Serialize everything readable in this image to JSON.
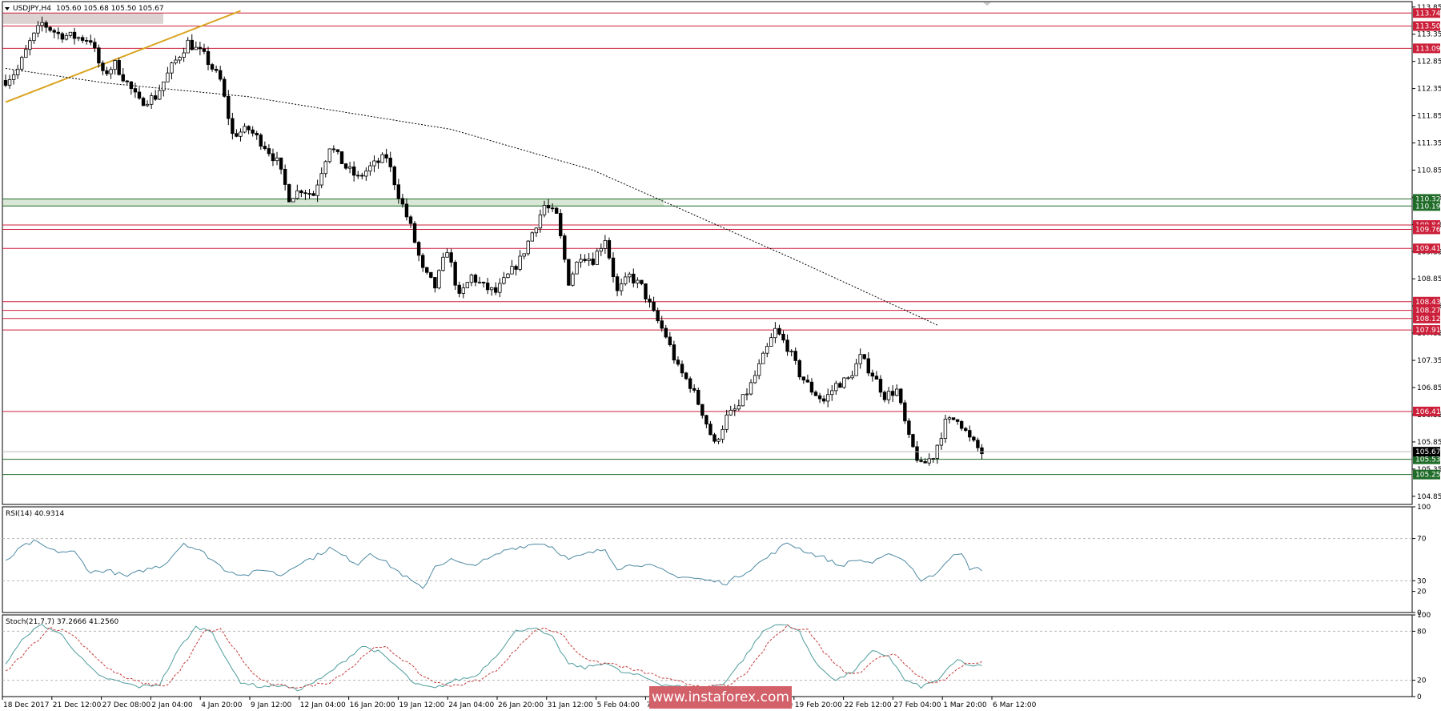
{
  "chart_data": {
    "type": "candlestick",
    "symbol": "USDJPY,H4",
    "header_title": "USDJPY,H4",
    "header_ohlc": "105.60 105.68 105.50 105.67",
    "price_axis": {
      "range": [
        104.7,
        113.95
      ],
      "ticks": [
        "113.85",
        "113.35",
        "112.85",
        "112.35",
        "111.85",
        "111.35",
        "110.85",
        "110.35",
        "109.85",
        "109.35",
        "108.85",
        "108.35",
        "107.85",
        "107.35",
        "106.85",
        "106.35",
        "105.85",
        "105.35",
        "104.85"
      ]
    },
    "time_labels": [
      "18 Dec 2017",
      "21 Dec 12:00",
      "27 Dec 08:00",
      "2 Jan 04:00",
      "4 Jan 20:00",
      "9 Jan 12:00",
      "12 Jan 04:00",
      "16 Jan 20:00",
      "19 Jan 12:00",
      "24 Jan 04:00",
      "26 Jan 20:00",
      "31 Jan 12:00",
      "5 Feb 04:00",
      "7 Feb 20:00",
      "12 Feb 12:00",
      "15 Feb 04:00",
      "19 Feb 20:00",
      "22 Feb 12:00",
      "27 Feb 04:00",
      "1 Mar 20:00",
      "6 Mar 12:00"
    ],
    "levels": [
      {
        "label": "113.74",
        "value": 113.74,
        "color": "#cc1f3a"
      },
      {
        "label": "113.50",
        "value": 113.5,
        "color": "#cc1f3a"
      },
      {
        "label": "113.09",
        "value": 113.09,
        "color": "#cc1f3a"
      },
      {
        "label": "110.32",
        "value": 110.32,
        "color": "#1f6b28"
      },
      {
        "label": "110.19",
        "value": 110.19,
        "color": "#1f6b28"
      },
      {
        "label": "109.84",
        "value": 109.84,
        "color": "#cc1f3a"
      },
      {
        "label": "109.76",
        "value": 109.76,
        "color": "#cc1f3a"
      },
      {
        "label": "109.41",
        "value": 109.41,
        "color": "#cc1f3a"
      },
      {
        "label": "108.43",
        "value": 108.43,
        "color": "#cc1f3a"
      },
      {
        "label": "108.27",
        "value": 108.27,
        "color": "#cc1f3a"
      },
      {
        "label": "108.12",
        "value": 108.12,
        "color": "#cc1f3a"
      },
      {
        "label": "107.91",
        "value": 107.91,
        "color": "#cc1f3a"
      },
      {
        "label": "106.41",
        "value": 106.41,
        "color": "#cc1f3a"
      },
      {
        "label": "105.53",
        "value": 105.53,
        "color": "#1f6b28"
      },
      {
        "label": "105.25",
        "value": 105.25,
        "color": "#1f6b28"
      }
    ],
    "current_price": {
      "label": "105.67",
      "value": 105.67
    },
    "zones": [
      {
        "from": 113.54,
        "to": 113.74,
        "color": "#dcd2d2"
      },
      {
        "from": 110.19,
        "to": 110.32,
        "color": "#d9e7d6"
      }
    ],
    "trendline": {
      "from": [
        0,
        112.1
      ],
      "to": [
        58,
        113.78
      ],
      "color": "#d9a421"
    },
    "ma_anchors": [
      [
        0,
        112.72
      ],
      [
        25,
        112.45
      ],
      [
        60,
        112.2
      ],
      [
        110,
        111.6
      ],
      [
        145,
        110.85
      ],
      [
        195,
        109.2
      ],
      [
        230,
        108.0
      ]
    ],
    "price_anchors": [
      [
        0,
        112.5
      ],
      [
        3,
        112.7
      ],
      [
        6,
        113.2
      ],
      [
        9,
        113.55
      ],
      [
        13,
        113.35
      ],
      [
        17,
        113.3
      ],
      [
        21,
        113.25
      ],
      [
        24,
        112.6
      ],
      [
        27,
        112.8
      ],
      [
        30,
        112.45
      ],
      [
        33,
        112.1
      ],
      [
        37,
        112.2
      ],
      [
        41,
        112.75
      ],
      [
        45,
        113.2
      ],
      [
        49,
        112.95
      ],
      [
        53,
        112.5
      ],
      [
        56,
        111.5
      ],
      [
        60,
        111.6
      ],
      [
        64,
        111.3
      ],
      [
        67,
        111.0
      ],
      [
        70,
        110.35
      ],
      [
        73,
        110.5
      ],
      [
        76,
        110.4
      ],
      [
        80,
        111.3
      ],
      [
        84,
        110.9
      ],
      [
        87,
        110.7
      ],
      [
        90,
        110.9
      ],
      [
        94,
        111.1
      ],
      [
        97,
        110.4
      ],
      [
        100,
        109.8
      ],
      [
        103,
        109.0
      ],
      [
        106,
        108.7
      ],
      [
        109,
        109.4
      ],
      [
        112,
        108.5
      ],
      [
        115,
        108.9
      ],
      [
        118,
        108.7
      ],
      [
        121,
        108.6
      ],
      [
        124,
        108.9
      ],
      [
        127,
        109.2
      ],
      [
        130,
        109.7
      ],
      [
        133,
        110.2
      ],
      [
        136,
        110.0
      ],
      [
        139,
        108.8
      ],
      [
        142,
        109.3
      ],
      [
        145,
        109.2
      ],
      [
        148,
        109.6
      ],
      [
        151,
        108.6
      ],
      [
        154,
        108.9
      ],
      [
        157,
        108.7
      ],
      [
        160,
        108.2
      ],
      [
        163,
        107.8
      ],
      [
        166,
        107.2
      ],
      [
        169,
        106.9
      ],
      [
        172,
        106.4
      ],
      [
        175,
        105.8
      ],
      [
        178,
        106.3
      ],
      [
        181,
        106.5
      ],
      [
        184,
        106.9
      ],
      [
        187,
        107.4
      ],
      [
        190,
        107.9
      ],
      [
        193,
        107.6
      ],
      [
        196,
        107.1
      ],
      [
        199,
        106.8
      ],
      [
        202,
        106.6
      ],
      [
        205,
        106.9
      ],
      [
        208,
        107.0
      ],
      [
        211,
        107.4
      ],
      [
        214,
        107.1
      ],
      [
        217,
        106.7
      ],
      [
        220,
        106.8
      ],
      [
        223,
        105.9
      ],
      [
        226,
        105.4
      ],
      [
        229,
        105.6
      ],
      [
        232,
        106.2
      ],
      [
        235,
        106.3
      ],
      [
        238,
        105.9
      ],
      [
        241,
        105.65
      ]
    ],
    "rsi": {
      "label": "RSI(14) 40.9314",
      "value": 40.9314,
      "range": [
        0,
        100
      ],
      "ticks": [
        "100",
        "70",
        "30",
        "20",
        "0"
      ],
      "levels": [
        70,
        30
      ],
      "color": "#4f8aa3",
      "anchors": [
        [
          0,
          48
        ],
        [
          4,
          62
        ],
        [
          7,
          67
        ],
        [
          12,
          58
        ],
        [
          17,
          57
        ],
        [
          21,
          38
        ],
        [
          25,
          40
        ],
        [
          30,
          34
        ],
        [
          34,
          40
        ],
        [
          39,
          45
        ],
        [
          44,
          66
        ],
        [
          49,
          56
        ],
        [
          54,
          41
        ],
        [
          59,
          35
        ],
        [
          64,
          41
        ],
        [
          68,
          35
        ],
        [
          72,
          46
        ],
        [
          76,
          52
        ],
        [
          80,
          61
        ],
        [
          84,
          52
        ],
        [
          87,
          46
        ],
        [
          90,
          57
        ],
        [
          94,
          47
        ],
        [
          99,
          33
        ],
        [
          103,
          22
        ],
        [
          106,
          44
        ],
        [
          110,
          50
        ],
        [
          114,
          44
        ],
        [
          119,
          50
        ],
        [
          124,
          60
        ],
        [
          128,
          63
        ],
        [
          132,
          66
        ],
        [
          135,
          62
        ],
        [
          139,
          50
        ],
        [
          144,
          56
        ],
        [
          148,
          60
        ],
        [
          151,
          42
        ],
        [
          156,
          46
        ],
        [
          160,
          43
        ],
        [
          165,
          35
        ],
        [
          169,
          33
        ],
        [
          174,
          30
        ],
        [
          178,
          28
        ],
        [
          183,
          39
        ],
        [
          188,
          52
        ],
        [
          193,
          66
        ],
        [
          198,
          57
        ],
        [
          202,
          52
        ],
        [
          206,
          44
        ],
        [
          210,
          50
        ],
        [
          214,
          47
        ],
        [
          219,
          56
        ],
        [
          223,
          46
        ],
        [
          226,
          30
        ],
        [
          229,
          35
        ],
        [
          233,
          52
        ],
        [
          236,
          55
        ],
        [
          238,
          42
        ],
        [
          241,
          40.9
        ]
      ]
    },
    "stoch": {
      "label": "Stoch(21,7,7) 37.2666 41.2560",
      "main_value": 37.2666,
      "signal_value": 41.256,
      "range": [
        0,
        100
      ],
      "ticks": [
        "100",
        "80",
        "20",
        "0"
      ],
      "levels": [
        80,
        20
      ],
      "main_color": "#4f9c9c",
      "signal_color": "#c63b3b",
      "main_anchors": [
        [
          0,
          40
        ],
        [
          5,
          75
        ],
        [
          9,
          88
        ],
        [
          14,
          75
        ],
        [
          19,
          45
        ],
        [
          23,
          25
        ],
        [
          28,
          18
        ],
        [
          33,
          12
        ],
        [
          38,
          15
        ],
        [
          43,
          60
        ],
        [
          47,
          85
        ],
        [
          51,
          80
        ],
        [
          55,
          40
        ],
        [
          58,
          18
        ],
        [
          63,
          12
        ],
        [
          68,
          14
        ],
        [
          72,
          8
        ],
        [
          78,
          22
        ],
        [
          84,
          45
        ],
        [
          88,
          62
        ],
        [
          92,
          55
        ],
        [
          97,
          35
        ],
        [
          101,
          15
        ],
        [
          106,
          10
        ],
        [
          111,
          20
        ],
        [
          116,
          25
        ],
        [
          121,
          50
        ],
        [
          126,
          80
        ],
        [
          130,
          85
        ],
        [
          135,
          72
        ],
        [
          139,
          40
        ],
        [
          143,
          35
        ],
        [
          148,
          42
        ],
        [
          152,
          30
        ],
        [
          157,
          25
        ],
        [
          162,
          15
        ],
        [
          167,
          12
        ],
        [
          172,
          10
        ],
        [
          177,
          15
        ],
        [
          182,
          45
        ],
        [
          187,
          80
        ],
        [
          191,
          90
        ],
        [
          196,
          80
        ],
        [
          200,
          40
        ],
        [
          205,
          20
        ],
        [
          209,
          30
        ],
        [
          214,
          55
        ],
        [
          218,
          50
        ],
        [
          222,
          20
        ],
        [
          226,
          12
        ],
        [
          230,
          20
        ],
        [
          235,
          45
        ],
        [
          238,
          38
        ],
        [
          241,
          37.3
        ]
      ],
      "signal_anchors": [
        [
          0,
          30
        ],
        [
          6,
          60
        ],
        [
          11,
          85
        ],
        [
          16,
          78
        ],
        [
          21,
          55
        ],
        [
          25,
          35
        ],
        [
          30,
          22
        ],
        [
          35,
          15
        ],
        [
          40,
          14
        ],
        [
          45,
          45
        ],
        [
          49,
          80
        ],
        [
          53,
          82
        ],
        [
          57,
          55
        ],
        [
          61,
          28
        ],
        [
          65,
          15
        ],
        [
          70,
          12
        ],
        [
          74,
          12
        ],
        [
          80,
          18
        ],
        [
          86,
          38
        ],
        [
          90,
          58
        ],
        [
          94,
          60
        ],
        [
          99,
          42
        ],
        [
          103,
          25
        ],
        [
          108,
          14
        ],
        [
          113,
          15
        ],
        [
          118,
          22
        ],
        [
          123,
          40
        ],
        [
          128,
          70
        ],
        [
          132,
          84
        ],
        [
          137,
          78
        ],
        [
          141,
          55
        ],
        [
          145,
          42
        ],
        [
          150,
          40
        ],
        [
          154,
          34
        ],
        [
          159,
          28
        ],
        [
          164,
          20
        ],
        [
          169,
          15
        ],
        [
          174,
          12
        ],
        [
          179,
          14
        ],
        [
          184,
          35
        ],
        [
          189,
          70
        ],
        [
          193,
          86
        ],
        [
          198,
          82
        ],
        [
          202,
          55
        ],
        [
          207,
          30
        ],
        [
          211,
          30
        ],
        [
          216,
          50
        ],
        [
          220,
          52
        ],
        [
          224,
          30
        ],
        [
          228,
          18
        ],
        [
          232,
          20
        ],
        [
          237,
          42
        ],
        [
          241,
          41.3
        ]
      ]
    }
  },
  "watermark": "www.instaforex.com"
}
